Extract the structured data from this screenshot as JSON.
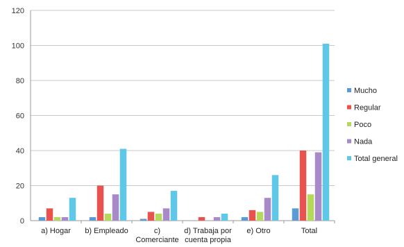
{
  "chart_data": {
    "type": "bar",
    "categories": [
      [
        "a) Hogar"
      ],
      [
        "b) Empleado"
      ],
      [
        "c)",
        "Comerciante"
      ],
      [
        "d) Trabaja por",
        "cuenta propia"
      ],
      [
        "e) Otro"
      ],
      [
        "Total"
      ]
    ],
    "series": [
      {
        "name": "Mucho",
        "color": "#5b9bd5",
        "values": [
          2,
          2,
          1,
          0,
          2,
          7
        ]
      },
      {
        "name": "Regular",
        "color": "#e8534f",
        "values": [
          7,
          20,
          5,
          2,
          6,
          40
        ]
      },
      {
        "name": "Poco",
        "color": "#b5d95a",
        "values": [
          2,
          4,
          4,
          0,
          5,
          15
        ]
      },
      {
        "name": "Nada",
        "color": "#a98ac9",
        "values": [
          2,
          15,
          7,
          2,
          13,
          39
        ]
      },
      {
        "name": "Total general",
        "color": "#5fc7e8",
        "values": [
          13,
          41,
          17,
          4,
          26,
          101
        ]
      }
    ],
    "yticks": [
      0,
      20,
      40,
      60,
      80,
      100,
      120
    ],
    "ylim": [
      0,
      120
    ],
    "grid": true,
    "legend_position": "right"
  }
}
